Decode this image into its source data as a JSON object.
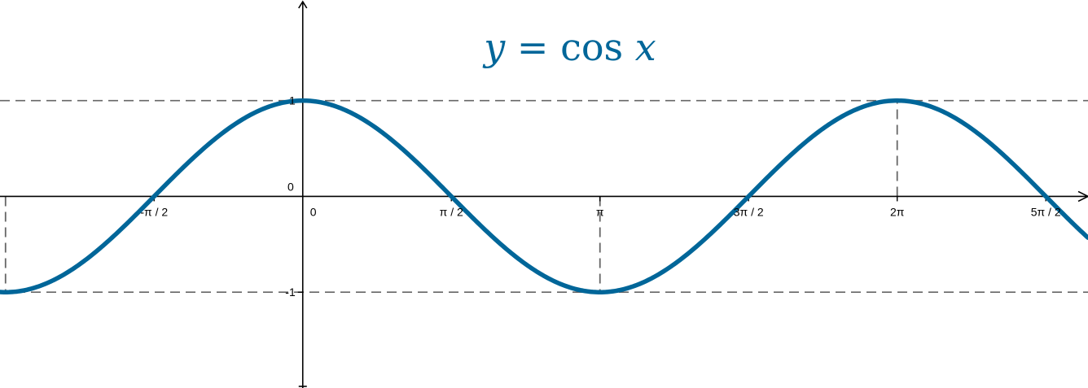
{
  "chart_data": {
    "type": "line",
    "title": "y = cos x",
    "title_parts": {
      "lhs": "y",
      "eq": " = ",
      "fn": "cos",
      "arg": "x"
    },
    "xlabel": "",
    "ylabel": "",
    "xlim": [
      -3.2,
      8.3
    ],
    "ylim": [
      -2.0,
      2.05
    ],
    "x_ticks": [
      {
        "value": -1.5708,
        "label": "-π / 2"
      },
      {
        "value": 0,
        "label": "0"
      },
      {
        "value": 1.5708,
        "label": "π / 2"
      },
      {
        "value": 3.1416,
        "label": "π"
      },
      {
        "value": 4.7124,
        "label": "3π / 2"
      },
      {
        "value": 6.2832,
        "label": "2π"
      },
      {
        "value": 7.854,
        "label": "5π / 2"
      }
    ],
    "y_ticks": [
      {
        "value": 1,
        "label": "1"
      },
      {
        "value": -1,
        "label": "-1"
      }
    ],
    "origin_label": "0",
    "series": [
      {
        "function": "cos",
        "x_range": [
          -3.2,
          8.3
        ],
        "color": "#006699"
      }
    ],
    "reference_lines": {
      "horizontal": [
        1,
        -1
      ],
      "vertical": [
        -3.1416,
        3.1416,
        6.2832
      ]
    },
    "colors": {
      "curve": "#006699",
      "title": "#006699",
      "axis": "#000000",
      "dashed": "#666666"
    },
    "grid": false
  }
}
